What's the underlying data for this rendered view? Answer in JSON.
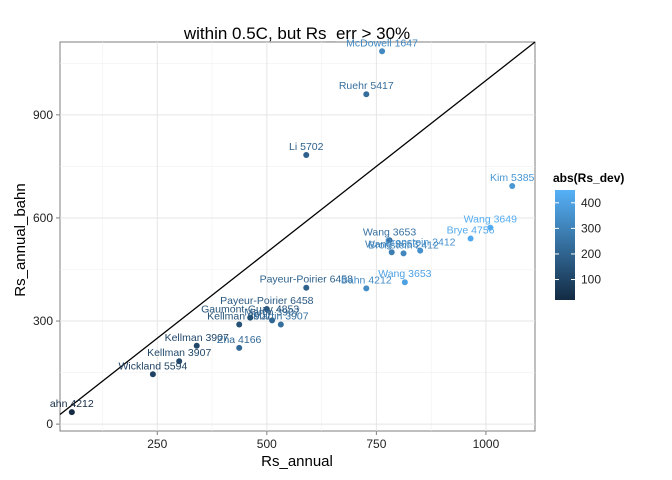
{
  "chart_data": {
    "type": "scatter",
    "title": "within 0.5C, but Rs_err > 30%",
    "xlabel": "Rs_annual",
    "ylabel": "Rs_annual_bahn",
    "xlim": [
      28,
      1112
    ],
    "ylim": [
      -20,
      1112
    ],
    "x_ticks": [
      250,
      500,
      750,
      1000
    ],
    "y_ticks": [
      0,
      300,
      600,
      900
    ],
    "x_tick_labels": [
      "250",
      "500",
      "750",
      "1000"
    ],
    "y_tick_labels": [
      "0",
      "300",
      "600",
      "900"
    ],
    "grid": true,
    "reference_line": {
      "slope": 1,
      "intercept": 0
    },
    "color_legend": {
      "title": "abs(Rs_dev)",
      "placement": "right",
      "min": 20,
      "max": 450,
      "ticks": [
        100,
        200,
        300,
        400
      ],
      "tick_labels": [
        "100",
        "200",
        "300",
        "400"
      ],
      "low_color": "#132B43",
      "high_color": "#56B1F7"
    },
    "points": [
      {
        "x": 55,
        "y": 35,
        "label": "ahn 4212",
        "dev": 20
      },
      {
        "x": 240,
        "y": 145,
        "label": "Wickland 5594",
        "dev": 95
      },
      {
        "x": 300,
        "y": 183,
        "label": "Kellman 3907",
        "dev": 115
      },
      {
        "x": 340,
        "y": 228,
        "label": "Kellman 3907",
        "dev": 110
      },
      {
        "x": 437,
        "y": 222,
        "label": "Zha 4166",
        "dev": 215
      },
      {
        "x": 437,
        "y": 290,
        "label": "Kellman 3907",
        "dev": 145
      },
      {
        "x": 462,
        "y": 310,
        "label": "Gaumont-Guay 4853",
        "dev": 150
      },
      {
        "x": 500,
        "y": 335,
        "label": "Payeur-Poirier 6458",
        "dev": 165
      },
      {
        "x": 512,
        "y": 302,
        "label": "Martin 3907",
        "dev": 210
      },
      {
        "x": 532,
        "y": 290,
        "label": "Martin 3907",
        "dev": 240
      },
      {
        "x": 590,
        "y": 783,
        "label": "Li 5702",
        "dev": 190
      },
      {
        "x": 590,
        "y": 397,
        "label": "Payeur-Poirier 6458",
        "dev": 195
      },
      {
        "x": 727,
        "y": 960,
        "label": "Ruehr 5417",
        "dev": 235
      },
      {
        "x": 727,
        "y": 395,
        "label": "Bahn 4212",
        "dev": 330
      },
      {
        "x": 763,
        "y": 1085,
        "label": "McDowell 1647",
        "dev": 320
      },
      {
        "x": 780,
        "y": 535,
        "label": "Wang 3653",
        "dev": 245
      },
      {
        "x": 785,
        "y": 500,
        "label": "Wang 3653",
        "dev": 285
      },
      {
        "x": 812,
        "y": 497,
        "label": "Bronstein 2412",
        "dev": 315
      },
      {
        "x": 815,
        "y": 413,
        "label": "Wang 3653",
        "dev": 400
      },
      {
        "x": 850,
        "y": 505,
        "label": "Bronstein 2412",
        "dev": 345
      },
      {
        "x": 965,
        "y": 540,
        "label": "Brye 4756",
        "dev": 425
      },
      {
        "x": 1010,
        "y": 572,
        "label": "Wang 3649",
        "dev": 440
      },
      {
        "x": 1060,
        "y": 693,
        "label": "Kim 5385",
        "dev": 365
      }
    ]
  }
}
